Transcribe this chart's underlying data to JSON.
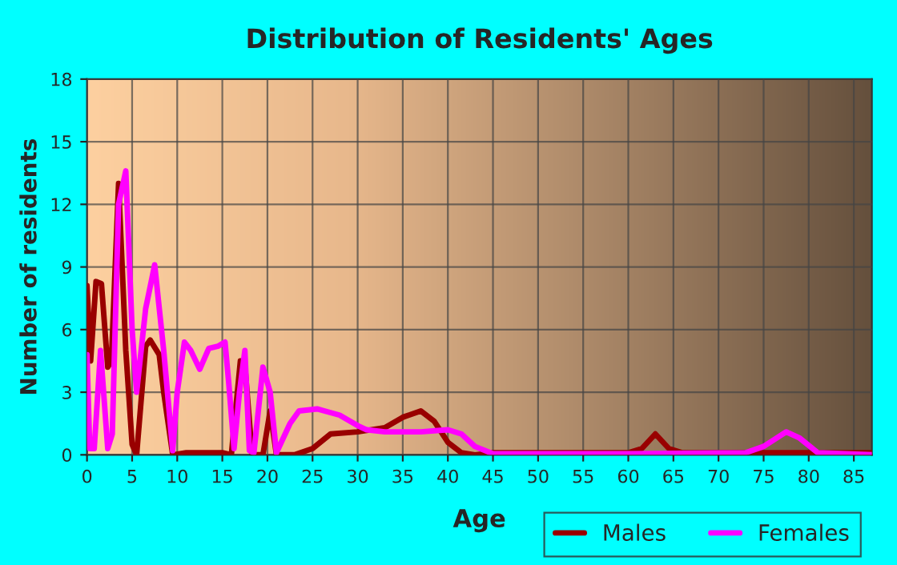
{
  "chart_data": {
    "type": "line",
    "title": "Distribution of Residents' Ages",
    "xlabel": "Age",
    "ylabel": "Number of residents",
    "xlim": [
      0,
      87
    ],
    "xticks": [
      0,
      5,
      10,
      15,
      20,
      25,
      30,
      35,
      40,
      45,
      50,
      55,
      60,
      65,
      70,
      75,
      80,
      85
    ],
    "ylim": [
      0,
      18
    ],
    "yticks": [
      0,
      3,
      6,
      9,
      12,
      15,
      18
    ],
    "grid": true,
    "legend": "bottom right",
    "line_style": "solid",
    "series": [
      {
        "name": "Males",
        "color": "#990000",
        "x": [
          0,
          0.4,
          1,
          1.6,
          2.3,
          2.7,
          3.5,
          4.3,
          5,
          5.5,
          6.5,
          7,
          8,
          8.5,
          9.5,
          11,
          15,
          16,
          17,
          17.5,
          18.3,
          19.5,
          20.3,
          21,
          23,
          25,
          27,
          30,
          33,
          35,
          37,
          38.5,
          40,
          41.5,
          43,
          45,
          60,
          61.5,
          63,
          64.5,
          66,
          75,
          87
        ],
        "values": [
          8.1,
          4.5,
          8.3,
          8.2,
          4.2,
          4.5,
          13,
          5,
          0.5,
          0,
          5.2,
          5.5,
          4.8,
          3,
          0,
          0.1,
          0.1,
          0,
          4.5,
          4.3,
          0,
          0,
          2.1,
          0,
          0,
          0.3,
          1.0,
          1.1,
          1.3,
          1.8,
          2.1,
          1.6,
          0.6,
          0.1,
          0,
          0.1,
          0.1,
          0.3,
          1.0,
          0.3,
          0.1,
          0.1,
          0.1
        ]
      },
      {
        "name": "Females",
        "color": "#ff00ff",
        "x": [
          0,
          0.3,
          0.8,
          1.5,
          2.3,
          2.8,
          3.5,
          4.3,
          5,
          5.5,
          6.5,
          7.5,
          8.5,
          9.5,
          10,
          10.8,
          11.5,
          12.5,
          13.5,
          14.5,
          15.3,
          15.7,
          16.3,
          16.9,
          17.5,
          18,
          18.5,
          19.5,
          20.3,
          21,
          22.5,
          23.5,
          25.5,
          28,
          30,
          31,
          33,
          37,
          40,
          41.5,
          43,
          45,
          60,
          73,
          75,
          77.5,
          79,
          81,
          87
        ],
        "values": [
          4.8,
          0.3,
          0.3,
          5.0,
          0.3,
          1,
          12,
          13.6,
          6,
          3,
          7,
          9.1,
          5,
          0.2,
          3,
          5.4,
          5,
          4.1,
          5.1,
          5.2,
          5.4,
          3.5,
          0.3,
          3,
          5.0,
          0.2,
          0.1,
          4.2,
          3,
          0.1,
          1.5,
          2.1,
          2.2,
          1.9,
          1.4,
          1.2,
          1.1,
          1.1,
          1.2,
          1.0,
          0.4,
          0.05,
          0.05,
          0.1,
          0.4,
          1.1,
          0.8,
          0.1,
          0
        ]
      }
    ]
  }
}
